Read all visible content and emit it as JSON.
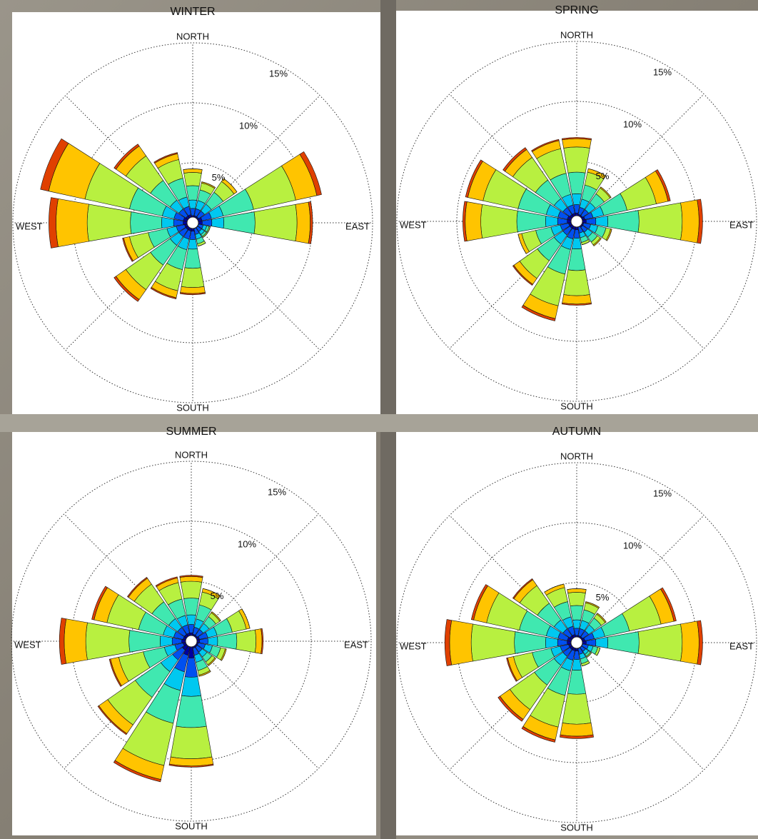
{
  "chart_data": [
    {
      "type": "windrose",
      "title": "WINTER",
      "categories": [
        "NORTH",
        null,
        null,
        null,
        "EAST",
        null,
        null,
        null,
        "SOUTH",
        null,
        null,
        null,
        "WEST",
        null,
        null,
        null
      ],
      "rlim": [
        0,
        15
      ],
      "rticks": [
        {
          "value": 5,
          "label": "5%"
        },
        {
          "value": 10,
          "label": "10%"
        },
        {
          "value": 15,
          "label": "15%"
        }
      ],
      "series": [
        {
          "color": "#0000a0",
          "values": [
            0.6,
            0.6,
            0.6,
            0.8,
            0.8,
            0.5,
            0.5,
            0.5,
            0.7,
            0.7,
            0.7,
            0.7,
            0.8,
            0.8,
            0.7,
            0.7
          ]
        },
        {
          "color": "#0050f0",
          "values": [
            0.6,
            0.6,
            0.6,
            0.8,
            0.8,
            0.4,
            0.4,
            0.5,
            0.7,
            0.7,
            0.7,
            0.7,
            0.8,
            0.8,
            0.7,
            0.7
          ]
        },
        {
          "color": "#00c8f0",
          "values": [
            0.7,
            0.7,
            0.7,
            1,
            1,
            0.3,
            0.3,
            0.4,
            0.8,
            0.9,
            0.9,
            0.8,
            1,
            1,
            0.9,
            0.8
          ]
        },
        {
          "color": "#40e8b0",
          "values": [
            1.2,
            0.9,
            1.2,
            2.6,
            2.6,
            0.2,
            0.2,
            0.4,
            1.6,
            1.7,
            2,
            1.6,
            2.6,
            2.8,
            2,
            1.6
          ]
        },
        {
          "color": "#b8f040",
          "values": [
            1.1,
            0.6,
            1.1,
            3.6,
            3.5,
            0.1,
            0.1,
            0.2,
            1.6,
            1.8,
            2.5,
            1.6,
            3.6,
            3.8,
            2.5,
            1.6
          ]
        },
        {
          "color": "#ffc400",
          "values": [
            0.3,
            0.1,
            0.3,
            1.8,
            1.1,
            0,
            0,
            0,
            0.5,
            0.6,
            1,
            0.5,
            2.6,
            3.1,
            1,
            0.5
          ]
        },
        {
          "color": "#e04000",
          "values": [
            0,
            0,
            0,
            0.4,
            0.2,
            0,
            0,
            0,
            0.1,
            0.1,
            0.2,
            0.1,
            0.6,
            0.7,
            0.2,
            0.1
          ]
        }
      ]
    },
    {
      "type": "windrose",
      "title": "SPRING",
      "categories": [
        "NORTH",
        null,
        null,
        null,
        "EAST",
        null,
        null,
        null,
        "SOUTH",
        null,
        null,
        null,
        "WEST",
        null,
        null,
        null
      ],
      "rlim": [
        0,
        15
      ],
      "rticks": [
        {
          "value": 5,
          "label": "5%"
        },
        {
          "value": 10,
          "label": "10%"
        },
        {
          "value": 15,
          "label": "15%"
        }
      ],
      "series": [
        {
          "color": "#0000a0",
          "values": [
            0.7,
            0.6,
            0.6,
            0.7,
            0.8,
            0.6,
            0.6,
            0.5,
            0.7,
            0.7,
            0.7,
            0.7,
            0.8,
            0.8,
            0.7,
            0.7
          ]
        },
        {
          "color": "#0050f0",
          "values": [
            0.7,
            0.6,
            0.6,
            0.7,
            0.8,
            0.6,
            0.5,
            0.5,
            0.7,
            0.8,
            0.7,
            0.7,
            0.8,
            0.8,
            0.7,
            0.7
          ]
        },
        {
          "color": "#00c8f0",
          "values": [
            0.9,
            0.7,
            0.7,
            0.9,
            1,
            0.6,
            0.5,
            0.4,
            0.9,
            0.9,
            0.9,
            0.8,
            1,
            1,
            0.9,
            0.9
          ]
        },
        {
          "color": "#40e8b0",
          "values": [
            1.8,
            1.2,
            0.9,
            2,
            2.6,
            0.7,
            0.5,
            0.4,
            1.8,
            2.1,
            1.7,
            1.3,
            2.4,
            2.4,
            1.9,
            1.8
          ]
        },
        {
          "color": "#b8f040",
          "values": [
            2.1,
            1.1,
            0.6,
            2.5,
            3.6,
            0.4,
            0.3,
            0.2,
            2.1,
            2.7,
            1.8,
            1.2,
            3,
            3,
            2.3,
            2.1
          ]
        },
        {
          "color": "#ffc400",
          "values": [
            0.7,
            0.3,
            0.1,
            1,
            1.4,
            0.1,
            0.1,
            0,
            0.7,
            1.1,
            0.6,
            0.3,
            1.3,
            1.3,
            0.8,
            0.7
          ]
        },
        {
          "color": "#e04000",
          "values": [
            0.1,
            0,
            0,
            0.2,
            0.3,
            0,
            0,
            0,
            0.1,
            0.2,
            0.1,
            0,
            0.2,
            0.2,
            0.2,
            0.1
          ]
        }
      ]
    },
    {
      "type": "windrose",
      "title": "SUMMER",
      "categories": [
        "NORTH",
        null,
        null,
        null,
        "EAST",
        null,
        null,
        null,
        "SOUTH",
        null,
        null,
        null,
        "WEST",
        null,
        null,
        null
      ],
      "rlim": [
        0,
        15
      ],
      "rticks": [
        {
          "value": 5,
          "label": "5%"
        },
        {
          "value": 10,
          "label": "10%"
        },
        {
          "value": 15,
          "label": "15%"
        }
      ],
      "series": [
        {
          "color": "#0000a0",
          "values": [
            0.7,
            0.6,
            0.6,
            0.7,
            0.7,
            0.6,
            0.6,
            0.6,
            1.4,
            1.2,
            0.9,
            0.7,
            0.8,
            0.7,
            0.7,
            0.7
          ]
        },
        {
          "color": "#0050f0",
          "values": [
            0.7,
            0.6,
            0.6,
            0.7,
            0.7,
            0.6,
            0.5,
            0.6,
            1.6,
            1.4,
            1,
            0.7,
            0.8,
            0.8,
            0.7,
            0.7
          ]
        },
        {
          "color": "#00c8f0",
          "values": [
            0.8,
            0.7,
            0.6,
            0.8,
            0.8,
            0.6,
            0.5,
            0.6,
            1.6,
            1.6,
            1.2,
            0.9,
            1,
            0.9,
            0.9,
            0.8
          ]
        },
        {
          "color": "#40e8b0",
          "values": [
            1.4,
            1.2,
            0.7,
            1.3,
            1.6,
            0.7,
            0.5,
            0.7,
            2.6,
            2.8,
            2.6,
            1.8,
            2.6,
            2.1,
            1.7,
            1.4
          ]
        },
        {
          "color": "#b8f040",
          "values": [
            1.4,
            1.1,
            0.4,
            1.2,
            1.6,
            0.4,
            0.3,
            0.4,
            2.6,
            3.6,
            2.8,
            2.1,
            3.6,
            2.7,
            1.8,
            1.4
          ]
        },
        {
          "color": "#ffc400",
          "values": [
            0.4,
            0.3,
            0.1,
            0.3,
            0.5,
            0.1,
            0.1,
            0.1,
            0.6,
            1.2,
            0.9,
            0.7,
            1.8,
            1.1,
            0.6,
            0.4
          ]
        },
        {
          "color": "#e04000",
          "values": [
            0.1,
            0,
            0,
            0,
            0.1,
            0,
            0,
            0,
            0.1,
            0.2,
            0.1,
            0.1,
            0.4,
            0.2,
            0.1,
            0.1
          ]
        }
      ]
    },
    {
      "type": "windrose",
      "title": "AUTUMN",
      "categories": [
        "NORTH",
        null,
        null,
        null,
        "EAST",
        null,
        null,
        null,
        "SOUTH",
        null,
        null,
        null,
        "WEST",
        null,
        null,
        null
      ],
      "rlim": [
        0,
        15
      ],
      "rticks": [
        {
          "value": 5,
          "label": "5%"
        },
        {
          "value": 10,
          "label": "10%"
        },
        {
          "value": 15,
          "label": "15%"
        }
      ],
      "series": [
        {
          "color": "#0000a0",
          "values": [
            0.6,
            0.6,
            0.6,
            0.7,
            0.8,
            0.5,
            0.5,
            0.5,
            0.7,
            0.7,
            0.7,
            0.7,
            0.8,
            0.8,
            0.7,
            0.7
          ]
        },
        {
          "color": "#0050f0",
          "values": [
            0.6,
            0.6,
            0.6,
            0.8,
            0.8,
            0.5,
            0.4,
            0.5,
            0.7,
            0.8,
            0.7,
            0.7,
            0.8,
            0.8,
            0.7,
            0.7
          ]
        },
        {
          "color": "#00c8f0",
          "values": [
            0.7,
            0.7,
            0.6,
            0.9,
            1,
            0.4,
            0.3,
            0.4,
            0.9,
            0.9,
            0.9,
            0.8,
            1,
            1,
            0.9,
            0.8
          ]
        },
        {
          "color": "#40e8b0",
          "values": [
            1.2,
            0.9,
            0.7,
            2.1,
            2.6,
            0.4,
            0.2,
            0.4,
            2,
            2.1,
            2,
            1.6,
            2.6,
            2.3,
            1.7,
            1.3
          ]
        },
        {
          "color": "#b8f040",
          "values": [
            1.1,
            0.6,
            0.4,
            2.7,
            3.6,
            0.2,
            0.1,
            0.2,
            2.5,
            2.7,
            2.5,
            1.6,
            3.6,
            2.8,
            1.8,
            1.2
          ]
        },
        {
          "color": "#ffc400",
          "values": [
            0.3,
            0.1,
            0.1,
            1.1,
            1.4,
            0,
            0,
            0,
            1,
            1.1,
            1,
            0.5,
            1.8,
            1.1,
            0.6,
            0.3
          ]
        },
        {
          "color": "#e04000",
          "values": [
            0,
            0,
            0,
            0.2,
            0.3,
            0,
            0,
            0,
            0.2,
            0.2,
            0.2,
            0.1,
            0.4,
            0.2,
            0.1,
            0
          ]
        }
      ]
    }
  ]
}
